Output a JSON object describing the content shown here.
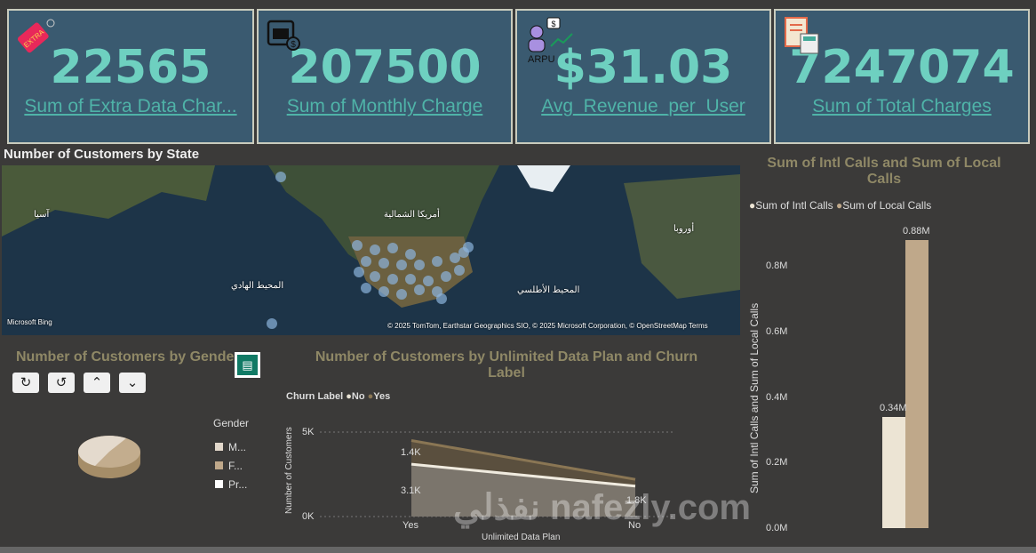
{
  "cards": [
    {
      "value": "22565",
      "label": "Sum of Extra Data Char...",
      "icon": "extra-tag-icon"
    },
    {
      "value": "207500",
      "label": "Sum of Monthly Charge",
      "icon": "calendar-dollar-icon"
    },
    {
      "value": "$31.03",
      "label": "Avg_Revenue_per_User",
      "icon": "arpu-icon",
      "icon_text": "ARPU"
    },
    {
      "value": "7247074",
      "label": "Sum of Total Charges",
      "icon": "invoice-calculator-icon"
    }
  ],
  "map": {
    "title": "Number of Customers by State",
    "labels": [
      "آسيا",
      "أمريكا الشمالية",
      "المحيط الهادي",
      "المحيط الأطلسي",
      "أوروبا"
    ],
    "attribution": "© 2025 TomTom, Earthstar Geographics SIO, © 2025 Microsoft Corporation, © OpenStreetMap Terms",
    "logo": "Microsoft Bing"
  },
  "gender": {
    "title": "Number of Customers by Gender",
    "legend_title": "Gender",
    "legend": [
      {
        "label": "M...",
        "color": "#e2d8cb"
      },
      {
        "label": "F...",
        "color": "#bfa88a"
      },
      {
        "label": "Pr...",
        "color": "#ffffff"
      }
    ],
    "slices": [
      {
        "name": "Male",
        "value": 50.5
      },
      {
        "name": "Female",
        "value": 49.3
      },
      {
        "name": "Prefer not to say",
        "value": 0.2
      }
    ]
  },
  "area": {
    "title": "Number of Customers by Unlimited Data Plan and Churn Label",
    "legend_title": "Churn Label",
    "xlabel": "Unlimited Data Plan",
    "ylabel": "Number of Customers",
    "yticks": [
      "5K",
      "0K"
    ],
    "categories": [
      "Yes",
      "No"
    ],
    "series": [
      {
        "name": "No",
        "values": [
          3.1,
          1.8
        ],
        "labels": [
          "3.1K",
          "1.8K"
        ],
        "color": "#e8e2d4"
      },
      {
        "name": "Yes",
        "values": [
          1.4,
          0.4
        ],
        "labels": [
          "1.4K",
          ""
        ],
        "color": "#8a7654"
      }
    ]
  },
  "bars": {
    "title": "Sum of Intl Calls and Sum of Local Calls",
    "ylabel": "Sum of Intl Calls and Sum of Local Calls",
    "yticks": [
      "0.8M",
      "0.6M",
      "0.4M",
      "0.2M",
      "0.0M"
    ],
    "series": [
      {
        "name": "Sum of Intl Calls",
        "value": 0.34,
        "label": "0.34M",
        "color": "#ece4d4"
      },
      {
        "name": "Sum of Local Calls",
        "value": 0.88,
        "label": "0.88M",
        "color": "#bfa88a"
      }
    ]
  },
  "watermark": "نفذلي nafezly.com"
}
